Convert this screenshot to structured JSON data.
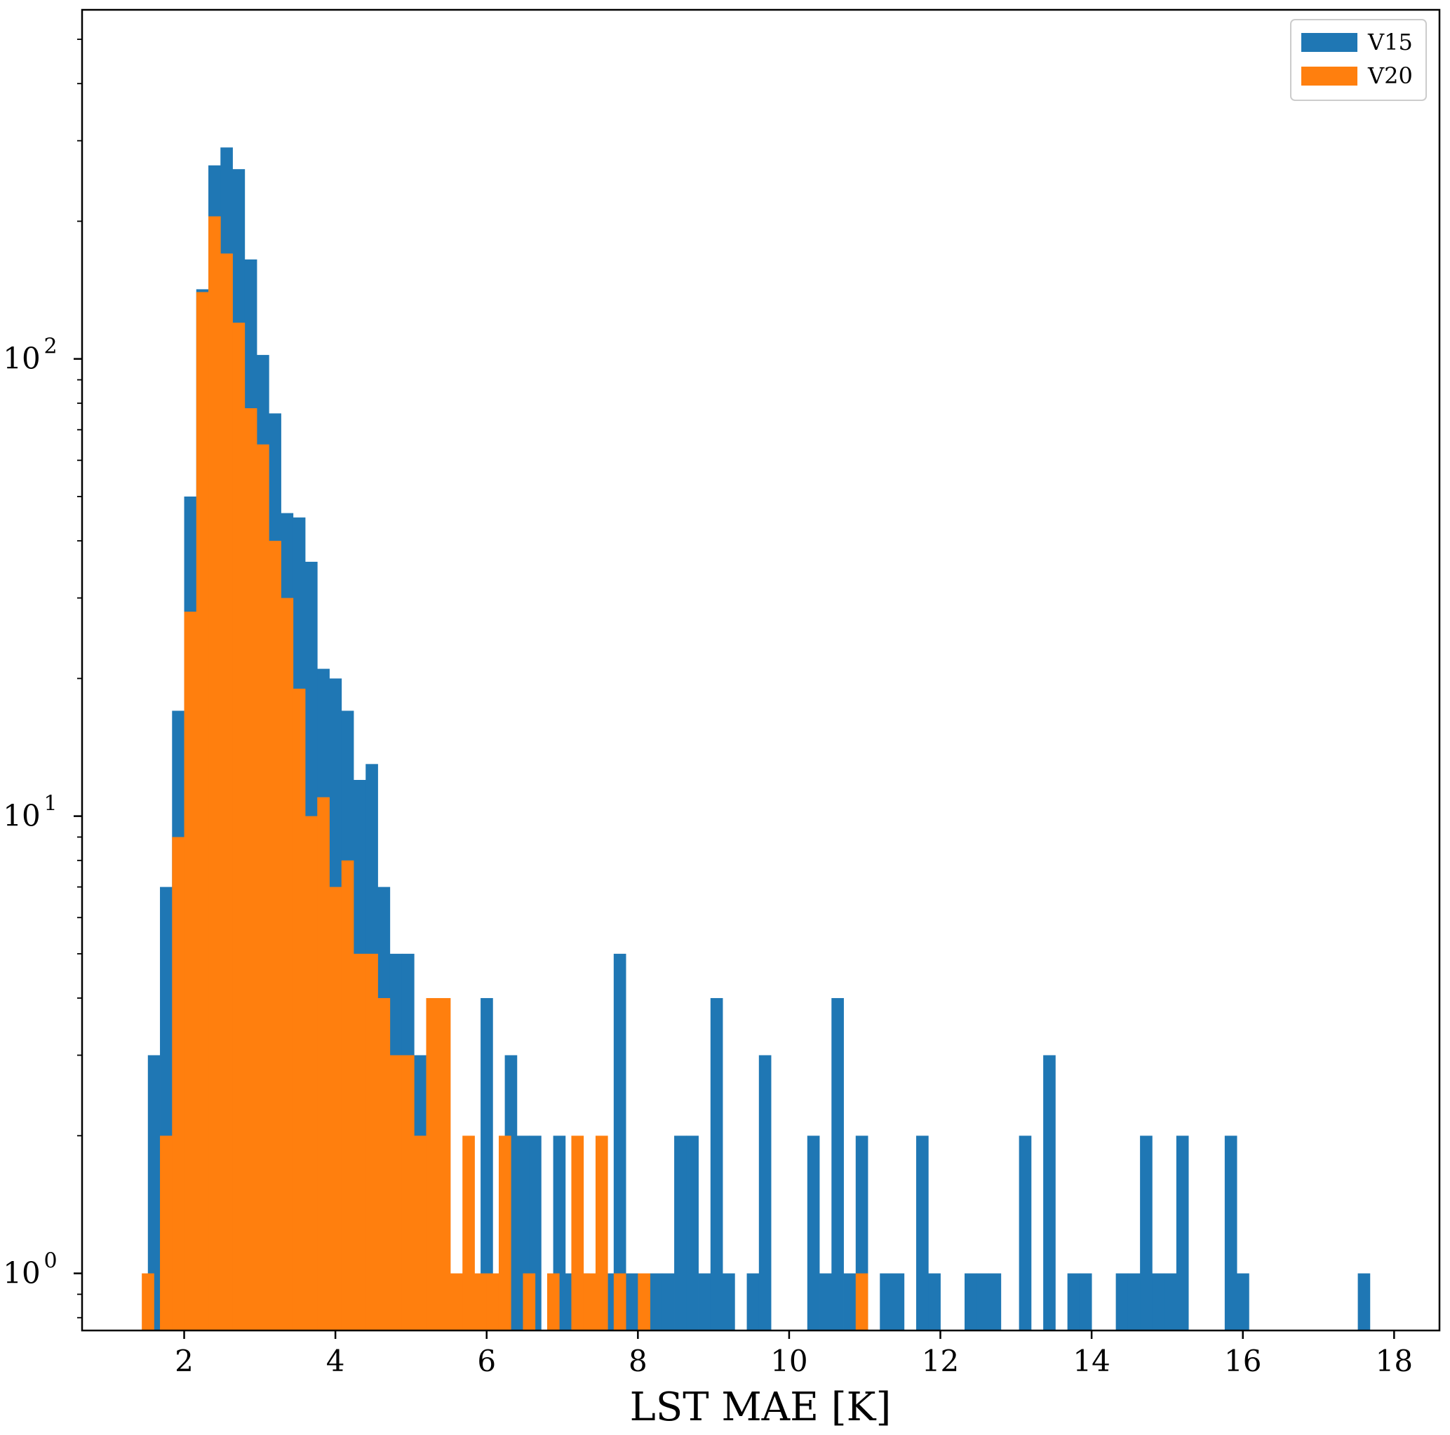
{
  "chart_data": {
    "type": "histogram",
    "xlabel": "LST MAE [K]",
    "ylabel": "",
    "yscale": "log",
    "xlim": [
      0.65,
      18.6
    ],
    "ylim": [
      0.75,
      580
    ],
    "bin_width": 0.16,
    "x_ticks": [
      2,
      4,
      6,
      8,
      10,
      12,
      14,
      16,
      18
    ],
    "y_ticks": [
      {
        "value": 1,
        "base": "10",
        "exp": "0"
      },
      {
        "value": 10,
        "base": "10",
        "exp": "1"
      },
      {
        "value": 100,
        "base": "10",
        "exp": "2"
      }
    ],
    "grid": false,
    "legend_position": "upper right",
    "series": [
      {
        "name": "V15",
        "color": "#1f77b4",
        "bins": [
          [
            1.52,
            3
          ],
          [
            1.68,
            7
          ],
          [
            1.84,
            17
          ],
          [
            2.0,
            50
          ],
          [
            2.16,
            142
          ],
          [
            2.32,
            265
          ],
          [
            2.48,
            290
          ],
          [
            2.64,
            260
          ],
          [
            2.8,
            165
          ],
          [
            2.96,
            102
          ],
          [
            3.12,
            76
          ],
          [
            3.28,
            46
          ],
          [
            3.44,
            45
          ],
          [
            3.6,
            36
          ],
          [
            3.76,
            21
          ],
          [
            3.92,
            20
          ],
          [
            4.08,
            17
          ],
          [
            4.24,
            12
          ],
          [
            4.4,
            13
          ],
          [
            4.56,
            7
          ],
          [
            4.72,
            5
          ],
          [
            4.88,
            5
          ],
          [
            5.04,
            3
          ],
          [
            5.2,
            1
          ],
          [
            5.92,
            4
          ],
          [
            6.24,
            3
          ],
          [
            6.4,
            2
          ],
          [
            6.56,
            2
          ],
          [
            6.88,
            2
          ],
          [
            7.04,
            1
          ],
          [
            7.2,
            1
          ],
          [
            7.52,
            1
          ],
          [
            7.68,
            5
          ],
          [
            7.84,
            1
          ],
          [
            8.16,
            1
          ],
          [
            8.32,
            1
          ],
          [
            8.48,
            2
          ],
          [
            8.64,
            2
          ],
          [
            8.8,
            1
          ],
          [
            8.96,
            4
          ],
          [
            9.12,
            1
          ],
          [
            9.44,
            1
          ],
          [
            9.6,
            3
          ],
          [
            10.24,
            2
          ],
          [
            10.4,
            1
          ],
          [
            10.56,
            4
          ],
          [
            10.72,
            1
          ],
          [
            10.88,
            2
          ],
          [
            11.2,
            1
          ],
          [
            11.36,
            1
          ],
          [
            11.68,
            2
          ],
          [
            11.84,
            1
          ],
          [
            12.32,
            1
          ],
          [
            12.48,
            1
          ],
          [
            12.64,
            1
          ],
          [
            13.04,
            2
          ],
          [
            13.36,
            3
          ],
          [
            13.68,
            1
          ],
          [
            13.84,
            1
          ],
          [
            14.32,
            1
          ],
          [
            14.48,
            1
          ],
          [
            14.64,
            2
          ],
          [
            14.8,
            1
          ],
          [
            14.96,
            1
          ],
          [
            15.12,
            2
          ],
          [
            15.76,
            2
          ],
          [
            15.92,
            1
          ],
          [
            17.52,
            1
          ]
        ]
      },
      {
        "name": "V20",
        "color": "#ff7f0e",
        "bins": [
          [
            1.44,
            1
          ],
          [
            1.68,
            2
          ],
          [
            1.84,
            9
          ],
          [
            2.0,
            28
          ],
          [
            2.16,
            140
          ],
          [
            2.32,
            205
          ],
          [
            2.48,
            170
          ],
          [
            2.64,
            120
          ],
          [
            2.8,
            78
          ],
          [
            2.96,
            65
          ],
          [
            3.12,
            40
          ],
          [
            3.28,
            30
          ],
          [
            3.44,
            19
          ],
          [
            3.6,
            10
          ],
          [
            3.76,
            11
          ],
          [
            3.92,
            7
          ],
          [
            4.08,
            8
          ],
          [
            4.24,
            5
          ],
          [
            4.4,
            5
          ],
          [
            4.56,
            4
          ],
          [
            4.72,
            3
          ],
          [
            4.88,
            3
          ],
          [
            5.04,
            2
          ],
          [
            5.2,
            4
          ],
          [
            5.36,
            4
          ],
          [
            5.52,
            1
          ],
          [
            5.68,
            2
          ],
          [
            5.84,
            1
          ],
          [
            6.0,
            1
          ],
          [
            6.16,
            2
          ],
          [
            6.48,
            1
          ],
          [
            6.8,
            1
          ],
          [
            7.12,
            2
          ],
          [
            7.28,
            1
          ],
          [
            7.44,
            2
          ],
          [
            7.68,
            1
          ],
          [
            8.0,
            1
          ],
          [
            10.88,
            1
          ]
        ]
      }
    ]
  }
}
